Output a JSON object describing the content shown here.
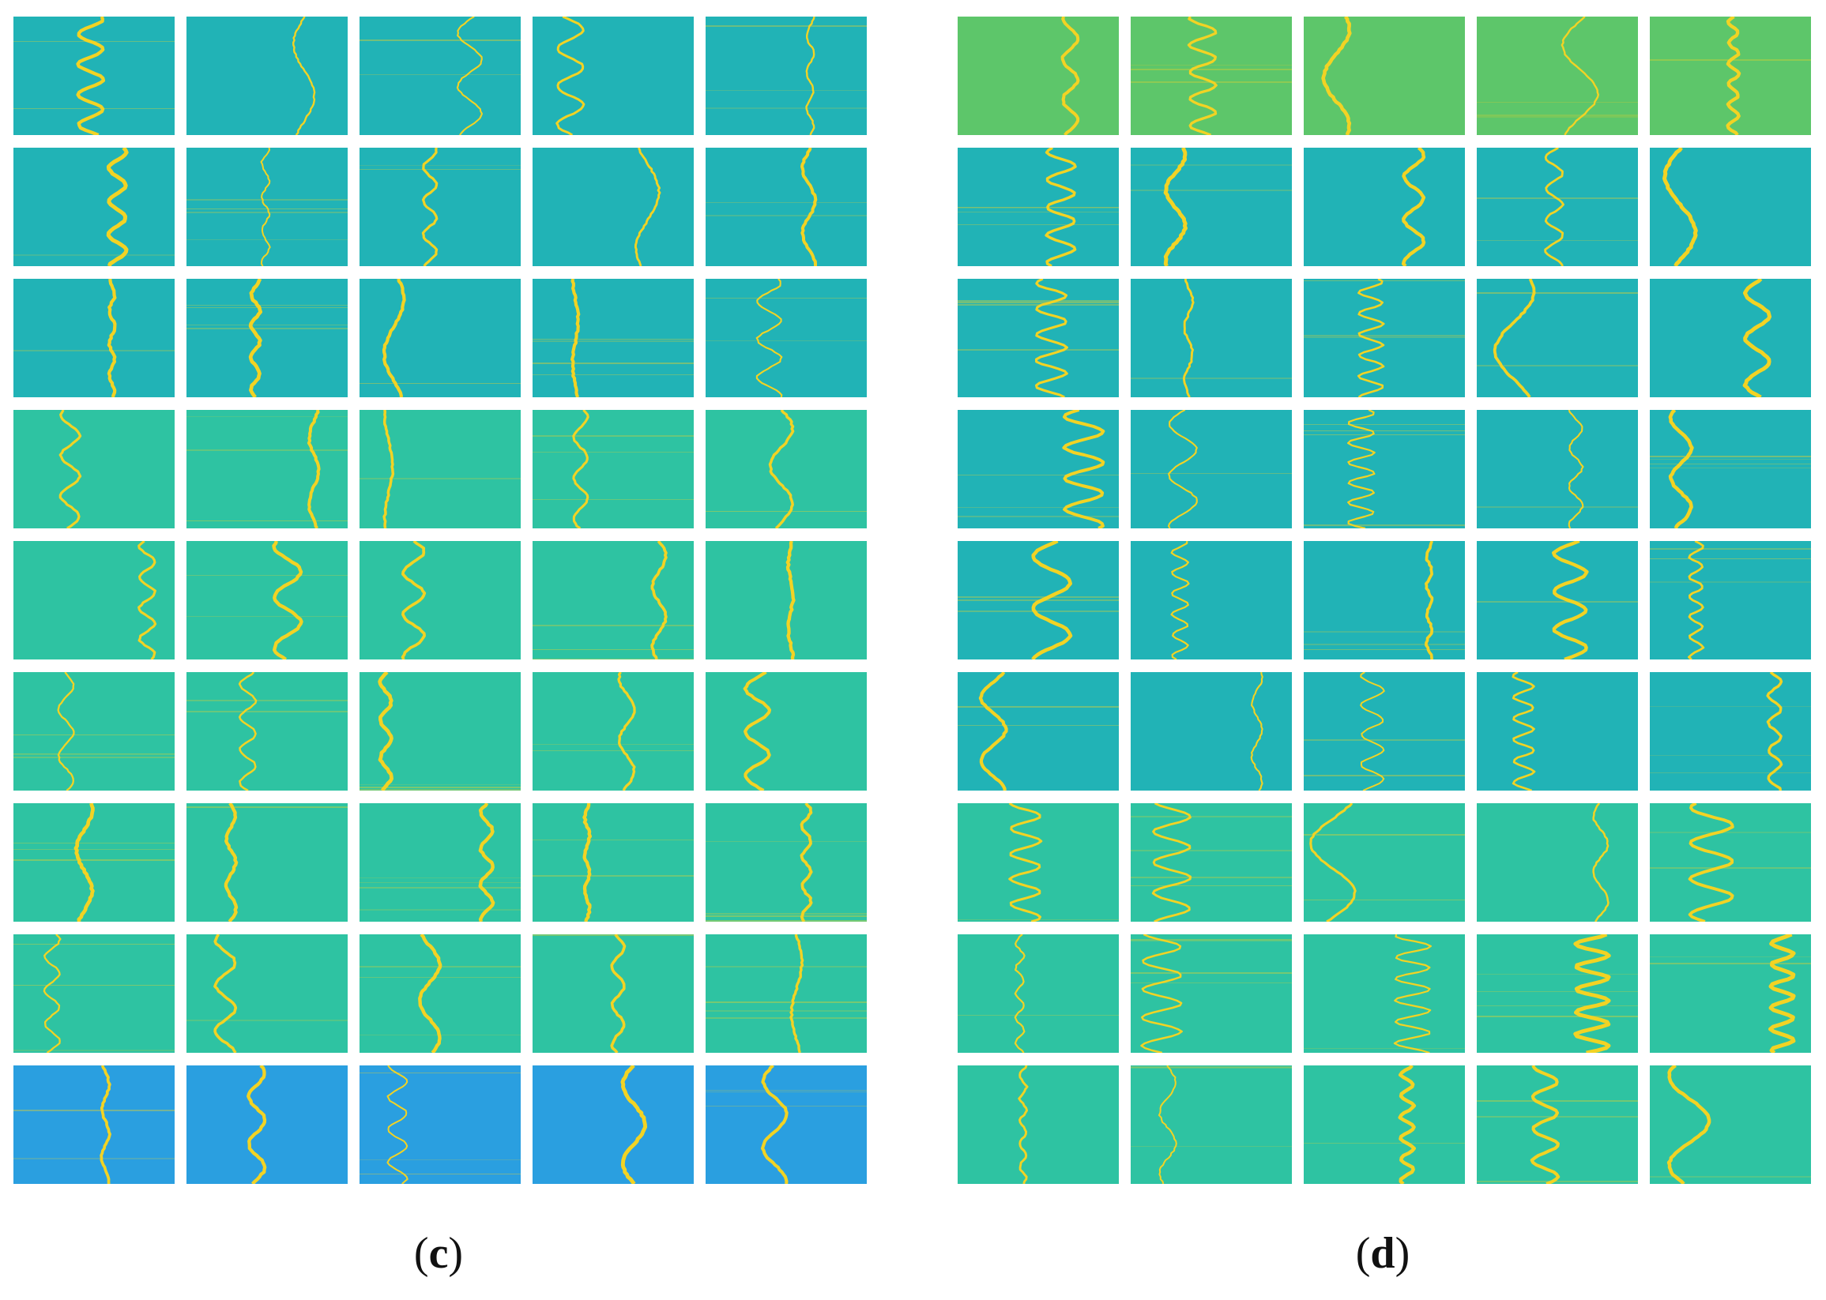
{
  "figure": {
    "panels": [
      {
        "id": "c",
        "label_open": "(",
        "label_letter": "c",
        "label_close": ")",
        "rows": 9,
        "cols": 5
      },
      {
        "id": "d",
        "label_open": "(",
        "label_letter": "d",
        "label_close": ")",
        "rows": 9,
        "cols": 5
      }
    ],
    "colors": {
      "teal": "#21b3b6",
      "sea": "#2ec3a2",
      "blue": "#2a9fe0",
      "green": "#5dc66a",
      "trace": "#f2d324"
    }
  }
}
